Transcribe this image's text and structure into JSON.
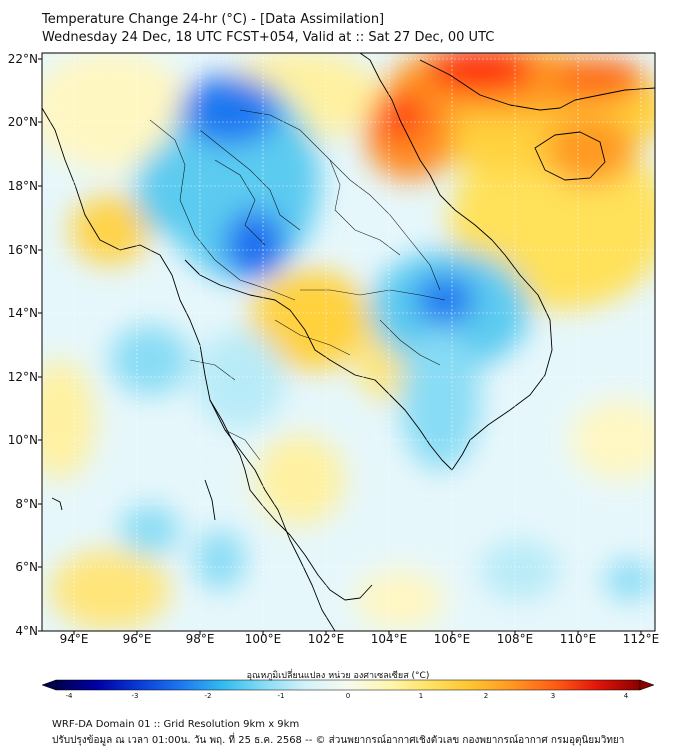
{
  "title": {
    "line1": "Temperature Change 24-hr (°C) - [Data Assimilation]",
    "line2": "Wednesday 24 Dec, 18 UTC FCST+054, Valid at :: Sat 27 Dec, 00 UTC"
  },
  "map": {
    "lat_labels": [
      "22°N",
      "20°N",
      "18°N",
      "16°N",
      "14°N",
      "12°N",
      "10°N",
      "8°N",
      "6°N",
      "4°N"
    ],
    "lon_labels": [
      "94°E",
      "96°E",
      "98°E",
      "100°E",
      "102°E",
      "104°E",
      "106°E",
      "108°E",
      "110°E",
      "112°E"
    ],
    "lat_range": [
      4,
      22.2
    ],
    "lon_range": [
      93,
      112.5
    ]
  },
  "colorbar": {
    "label": "อุณหภูมิเปลี่ยนแปลง หน่วย องศาเซลเซียส (°C)",
    "ticks": [
      "-4",
      "-3",
      "-2",
      "-1",
      "0",
      "1",
      "2",
      "3",
      "4"
    ],
    "range": [
      -4,
      4
    ],
    "colors": [
      "#00004d",
      "#0000a6",
      "#0a3cd6",
      "#1e78f0",
      "#33bbee",
      "#88dcf5",
      "#d4f2fa",
      "#f7f9ee",
      "#fff6b0",
      "#ffe060",
      "#ffc22e",
      "#ff9422",
      "#ff5a14",
      "#e0140a",
      "#8a0000"
    ]
  },
  "footer": {
    "line1": "WRF-DA Domain 01 :: Grid Resolution 9km x 9km",
    "line2": "ปรับปรุงข้อมูล ณ เวลา 01:00น. วัน พฤ. ที่ 25 ธ.ค. 2568 -- © ส่วนพยากรณ์อากาศเชิงตัวเลข กองพยากรณ์อากาศ กรมอุตุนิยมวิทยา"
  }
}
